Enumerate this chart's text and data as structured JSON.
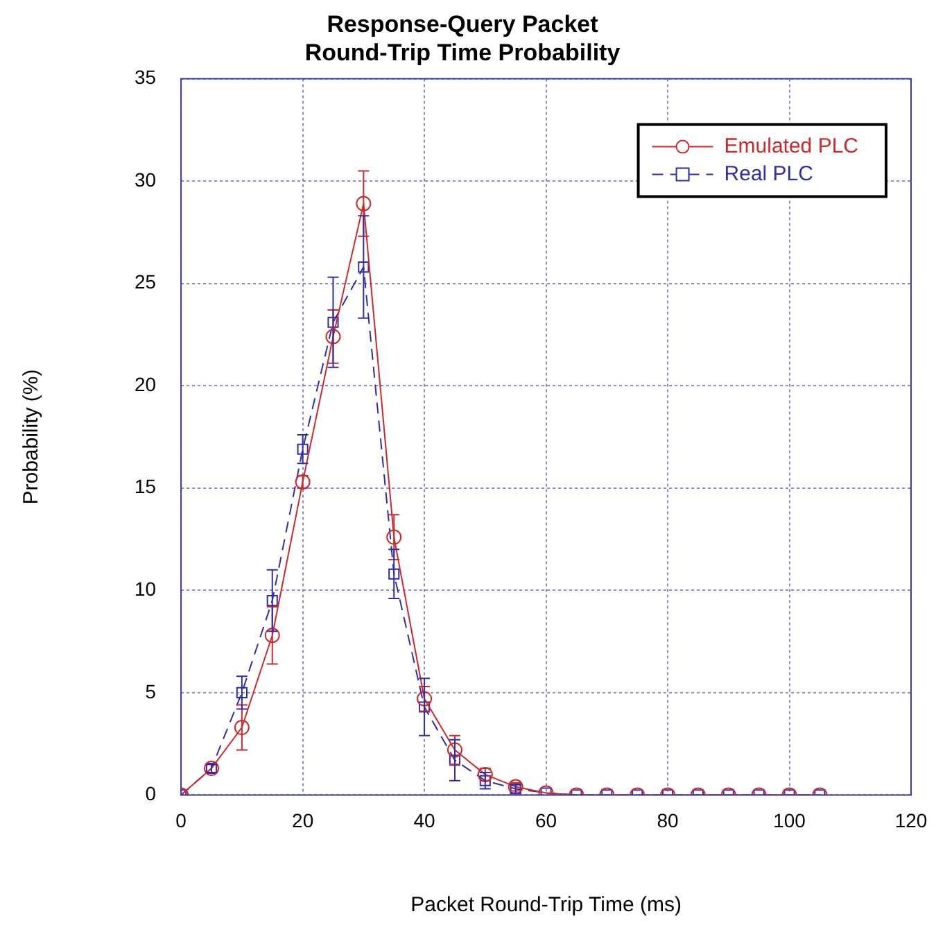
{
  "chart_data": {
    "type": "line",
    "title": "Response-Query Packet Round-Trip Time Probability",
    "xlabel": "Packet Round-Trip Time (ms)",
    "ylabel": "Probability (%)",
    "x": [
      0,
      5,
      10,
      15,
      20,
      25,
      30,
      35,
      40,
      45,
      50,
      55,
      60,
      65,
      70,
      75,
      80,
      85,
      90,
      95,
      100,
      105
    ],
    "series": [
      {
        "name": "Emulated PLC",
        "color": "#cc2a2a",
        "marker": "circle",
        "line_style": "solid",
        "values": [
          0,
          1.3,
          3.3,
          7.8,
          15.3,
          22.4,
          28.9,
          12.6,
          4.7,
          2.2,
          1.0,
          0.4,
          0.1,
          0,
          0,
          0,
          0,
          0,
          0,
          0,
          0,
          0
        ],
        "errors": [
          null,
          0.2,
          1.1,
          1.4,
          0.3,
          1.3,
          1.6,
          1.1,
          0.6,
          0.7,
          0.3,
          0.2,
          null,
          null,
          null,
          null,
          null,
          null,
          null,
          null,
          null,
          null
        ]
      },
      {
        "name": "Real PLC",
        "color": "#2e2ea8",
        "marker": "square",
        "line_style": "dashed",
        "values": [
          0,
          1.3,
          5.0,
          9.5,
          16.9,
          23.1,
          25.8,
          10.8,
          4.3,
          1.7,
          0.7,
          0.3,
          0.1,
          0,
          0,
          0,
          0,
          0,
          0,
          0,
          0,
          0
        ],
        "errors": [
          null,
          0.2,
          0.8,
          1.5,
          0.7,
          2.2,
          2.5,
          1.2,
          1.4,
          1.0,
          0.4,
          0.2,
          null,
          null,
          null,
          null,
          null,
          null,
          null,
          null,
          null,
          null
        ]
      }
    ],
    "xlim": [
      0,
      120
    ],
    "xticks": [
      0,
      20,
      40,
      60,
      80,
      100,
      120
    ],
    "ylim": [
      0,
      35
    ],
    "yticks": [
      0,
      5,
      10,
      15,
      20,
      25,
      30,
      35
    ],
    "grid": true,
    "legend": "top right"
  }
}
